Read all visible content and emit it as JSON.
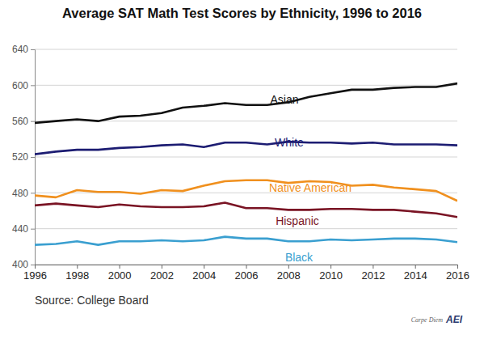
{
  "chart_data": {
    "type": "line",
    "title": "Average SAT Math Test Scores by Ethnicity, 1996 to 2016",
    "source": "Source: College Board",
    "annotations": [
      "Carpe Diem",
      "AEI"
    ],
    "x": [
      1996,
      1997,
      1998,
      1999,
      2000,
      2001,
      2002,
      2003,
      2004,
      2005,
      2006,
      2007,
      2008,
      2009,
      2010,
      2011,
      2012,
      2013,
      2014,
      2015,
      2016
    ],
    "xlim": [
      1996,
      2016
    ],
    "xticks": [
      1996,
      1998,
      2000,
      2002,
      2004,
      2006,
      2008,
      2010,
      2012,
      2014,
      2016
    ],
    "ylim": [
      400,
      640
    ],
    "yticks": [
      400,
      440,
      480,
      520,
      560,
      600,
      640
    ],
    "grid": true,
    "series": [
      {
        "name": "Asian",
        "color": "#111111",
        "values": [
          558,
          560,
          562,
          560,
          565,
          566,
          569,
          575,
          577,
          580,
          578,
          578,
          581,
          587,
          591,
          595,
          595,
          597,
          598,
          598,
          602
        ]
      },
      {
        "name": "White",
        "color": "#1c1c72",
        "values": [
          523,
          526,
          528,
          528,
          530,
          531,
          533,
          534,
          531,
          536,
          536,
          534,
          537,
          536,
          536,
          535,
          536,
          534,
          534,
          534,
          533
        ]
      },
      {
        "name": "Native American",
        "color": "#f0901e",
        "values": [
          477,
          475,
          483,
          481,
          481,
          479,
          483,
          482,
          488,
          493,
          494,
          494,
          491,
          493,
          492,
          488,
          489,
          486,
          484,
          482,
          471
        ]
      },
      {
        "name": "Hispanic",
        "color": "#7a1424",
        "values": [
          466,
          468,
          466,
          464,
          467,
          465,
          464,
          464,
          465,
          469,
          463,
          463,
          461,
          461,
          462,
          462,
          461,
          461,
          459,
          457,
          453
        ]
      },
      {
        "name": "Black",
        "color": "#3a9fd0",
        "values": [
          422,
          423,
          426,
          422,
          426,
          426,
          427,
          426,
          427,
          431,
          429,
          429,
          426,
          426,
          428,
          427,
          428,
          429,
          429,
          428,
          425
        ]
      }
    ]
  }
}
